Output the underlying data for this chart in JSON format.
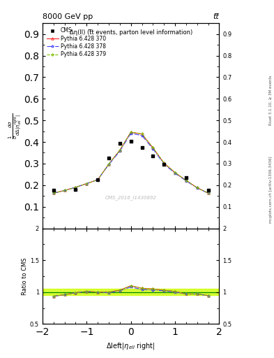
{
  "title_top": "8000 GeV pp",
  "title_top_right": "tt̅",
  "plot_title": "Δη(ll) (t̅̅t events, parton level information)",
  "xlabel": "Δleft|η_ell right|",
  "ylabel_main": "1/σ dσ/dΔ|η_{ell}^{right}|",
  "ylabel_ratio": "Ratio to CMS",
  "watermark": "CMS_2016_I1430892",
  "right_label": "Rivet 3.1.10, ≥ 3M events",
  "right_label2": "mcplots.cern.ch [arXiv:1306.3436]",
  "x_data": [
    -1.75,
    -1.25,
    -0.75,
    -0.5,
    -0.25,
    0.0,
    0.25,
    0.5,
    0.75,
    1.25,
    1.75
  ],
  "cms_y": [
    0.175,
    0.18,
    0.225,
    0.325,
    0.395,
    0.405,
    0.375,
    0.335,
    0.295,
    0.235,
    0.175
  ],
  "x_line": [
    -1.75,
    -1.5,
    -1.25,
    -1.0,
    -0.75,
    -0.5,
    -0.25,
    0.0,
    0.25,
    0.5,
    0.75,
    1.0,
    1.25,
    1.5,
    1.75
  ],
  "py370_line": [
    0.163,
    0.175,
    0.19,
    0.207,
    0.225,
    0.297,
    0.362,
    0.445,
    0.437,
    0.373,
    0.302,
    0.258,
    0.222,
    0.188,
    0.163
  ],
  "py378_line": [
    0.163,
    0.175,
    0.19,
    0.207,
    0.225,
    0.295,
    0.357,
    0.44,
    0.43,
    0.368,
    0.298,
    0.255,
    0.22,
    0.187,
    0.163
  ],
  "py379_line": [
    0.163,
    0.175,
    0.19,
    0.207,
    0.225,
    0.298,
    0.362,
    0.446,
    0.438,
    0.374,
    0.303,
    0.259,
    0.222,
    0.188,
    0.163
  ],
  "ratio_x": [
    -1.75,
    -1.5,
    -1.25,
    -1.0,
    -0.75,
    -0.5,
    -0.25,
    0.0,
    0.25,
    0.5,
    0.75,
    1.0,
    1.25,
    1.5,
    1.75
  ],
  "ratio370": [
    0.935,
    0.96,
    0.99,
    1.01,
    1.0,
    1.0,
    1.03,
    1.1,
    1.06,
    1.05,
    1.03,
    1.01,
    0.97,
    0.97,
    0.945
  ],
  "ratio378": [
    0.935,
    0.96,
    0.99,
    1.01,
    1.0,
    0.99,
    1.02,
    1.08,
    1.04,
    1.03,
    1.02,
    1.0,
    0.97,
    0.97,
    0.945
  ],
  "ratio379": [
    0.935,
    0.96,
    0.99,
    1.01,
    1.0,
    1.0,
    1.03,
    1.1,
    1.06,
    1.05,
    1.03,
    1.01,
    0.97,
    0.97,
    0.945
  ],
  "color370": "#ff2020",
  "color378": "#4040ff",
  "color379": "#80c000",
  "cms_color": "#000000",
  "ylim_main": [
    0.0,
    0.95
  ],
  "ylim_ratio": [
    0.5,
    2.0
  ],
  "xlim": [
    -2.0,
    2.0
  ],
  "yticks_main": [
    0.1,
    0.2,
    0.3,
    0.4,
    0.5,
    0.6,
    0.7,
    0.8,
    0.9
  ],
  "yticks_ratio": [
    0.5,
    1.0,
    1.5,
    2.0
  ],
  "yticklabels_ratio": [
    "0.5",
    "1",
    "1.5",
    "2"
  ]
}
